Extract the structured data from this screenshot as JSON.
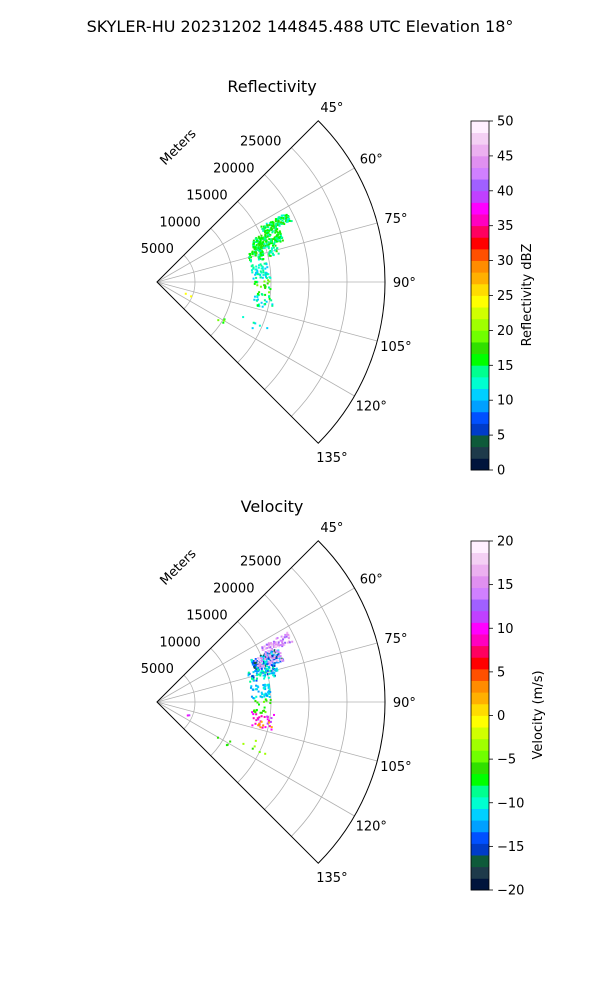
{
  "suptitle": "SKYLER-HU  20231202  144845.488 UTC Elevation 18°",
  "chart_data": [
    {
      "type": "scatter",
      "title": "Reflectivity",
      "radial_label": "Meters",
      "theta_range_deg": [
        45,
        135
      ],
      "r_max": 30000,
      "r_ticks": [
        5000,
        10000,
        15000,
        20000,
        25000
      ],
      "r_tick_labels": [
        "5000",
        "10000",
        "15000",
        "20000",
        "25000"
      ],
      "theta_ticks": [
        45,
        60,
        75,
        90,
        105,
        120,
        135
      ],
      "theta_tick_labels": [
        "45°",
        "60°",
        "75°",
        "90°",
        "105°",
        "120°",
        "135°"
      ],
      "grid": true,
      "colorbar": {
        "label": "Reflectivity dBZ",
        "range": [
          0,
          50
        ],
        "ticks": [
          0,
          5,
          10,
          15,
          20,
          25,
          30,
          35,
          40,
          45,
          50
        ],
        "tick_labels": [
          "0",
          "5",
          "10",
          "15",
          "20",
          "25",
          "30",
          "35",
          "40",
          "45",
          "50"
        ],
        "colors": [
          "#00143c",
          "#1e3a4a",
          "#0e5a3a",
          "#003cc8",
          "#0050ff",
          "#00a0ff",
          "#00d0ff",
          "#00ffd0",
          "#00ff90",
          "#00ff00",
          "#30e000",
          "#70ff00",
          "#a0ff00",
          "#d0ff00",
          "#ffff00",
          "#ffdc00",
          "#ffb000",
          "#ff8c00",
          "#ff5000",
          "#ff0000",
          "#ff0060",
          "#ff00c0",
          "#ff00ff",
          "#c040ff",
          "#a060ff",
          "#d080ff",
          "#e090f0",
          "#ecb0f0",
          "#f4d0f4",
          "#fff0ff"
        ]
      },
      "clusters": [
        {
          "theta": [
            62,
            66
          ],
          "r": [
            15500,
            19500
          ],
          "values": [
            12,
            18
          ],
          "count": 120
        },
        {
          "theta": [
            66,
            72
          ],
          "r": [
            13500,
            17500
          ],
          "values": [
            13,
            18
          ],
          "count": 170
        },
        {
          "theta": [
            72,
            78
          ],
          "r": [
            12500,
            16500
          ],
          "values": [
            12,
            18
          ],
          "count": 80
        },
        {
          "theta": [
            80,
            88
          ],
          "r": [
            12500,
            15000
          ],
          "values": [
            10,
            15
          ],
          "count": 50
        },
        {
          "theta": [
            88,
            96
          ],
          "r": [
            12800,
            15000
          ],
          "values": [
            14,
            20
          ],
          "count": 20
        },
        {
          "theta": [
            96,
            104
          ],
          "r": [
            13000,
            15500
          ],
          "values": [
            10,
            16
          ],
          "count": 30
        },
        {
          "theta": [
            110,
            116
          ],
          "r": [
            12000,
            16000
          ],
          "values": [
            10,
            14
          ],
          "count": 6
        },
        {
          "theta": [
            118,
            122
          ],
          "r": [
            9000,
            11000
          ],
          "values": [
            16,
            20
          ],
          "count": 4
        },
        {
          "theta": [
            112,
            114
          ],
          "r": [
            4000,
            5000
          ],
          "values": [
            23,
            25
          ],
          "count": 2
        }
      ]
    },
    {
      "type": "scatter",
      "title": "Velocity",
      "radial_label": "Meters",
      "theta_range_deg": [
        45,
        135
      ],
      "r_max": 30000,
      "r_ticks": [
        5000,
        10000,
        15000,
        20000,
        25000
      ],
      "r_tick_labels": [
        "5000",
        "10000",
        "15000",
        "20000",
        "25000"
      ],
      "theta_ticks": [
        45,
        60,
        75,
        90,
        105,
        120,
        135
      ],
      "theta_tick_labels": [
        "45°",
        "60°",
        "75°",
        "90°",
        "105°",
        "120°",
        "135°"
      ],
      "grid": true,
      "colorbar": {
        "label": "Velocity (m/s)",
        "range": [
          -20,
          20
        ],
        "ticks": [
          -20,
          -15,
          -10,
          -5,
          0,
          5,
          10,
          15,
          20
        ],
        "tick_labels": [
          "−20",
          "−15",
          "−10",
          "−5",
          "0",
          "5",
          "10",
          "15",
          "20"
        ],
        "colors": [
          "#00143c",
          "#1e3a4a",
          "#0e5a3a",
          "#003cc8",
          "#0050ff",
          "#00a0ff",
          "#00d0ff",
          "#00ffd0",
          "#00ff90",
          "#00ff00",
          "#30e000",
          "#70ff00",
          "#a0ff00",
          "#d0ff00",
          "#ffff00",
          "#ffdc00",
          "#ffb000",
          "#ff8c00",
          "#ff5000",
          "#ff0000",
          "#ff0060",
          "#ff00c0",
          "#ff00ff",
          "#c040ff",
          "#a060ff",
          "#d080ff",
          "#e090f0",
          "#ecb0f0",
          "#f4d0f4",
          "#fff0ff"
        ]
      },
      "clusters": [
        {
          "theta": [
            62,
            66
          ],
          "r": [
            15500,
            19500
          ],
          "values": [
            12,
            18
          ],
          "count": 80
        },
        {
          "theta": [
            66,
            72
          ],
          "r": [
            13500,
            17500
          ],
          "values": [
            -17,
            -10
          ],
          "count": 150
        },
        {
          "theta": [
            66,
            72
          ],
          "r": [
            14000,
            17500
          ],
          "values": [
            14,
            18
          ],
          "count": 60
        },
        {
          "theta": [
            72,
            78
          ],
          "r": [
            12500,
            16500
          ],
          "values": [
            -16,
            -8
          ],
          "count": 80
        },
        {
          "theta": [
            80,
            88
          ],
          "r": [
            12500,
            15000
          ],
          "values": [
            -13,
            -10
          ],
          "count": 50
        },
        {
          "theta": [
            88,
            96
          ],
          "r": [
            12800,
            15000
          ],
          "values": [
            -8,
            -5
          ],
          "count": 20
        },
        {
          "theta": [
            96,
            104
          ],
          "r": [
            12500,
            15500
          ],
          "values": [
            8,
            12
          ],
          "count": 30
        },
        {
          "theta": [
            100,
            104
          ],
          "r": [
            13500,
            15500
          ],
          "values": [
            1,
            4
          ],
          "count": 8
        },
        {
          "theta": [
            110,
            116
          ],
          "r": [
            12000,
            16000
          ],
          "values": [
            -6,
            -3
          ],
          "count": 6
        },
        {
          "theta": [
            118,
            122
          ],
          "r": [
            9000,
            11000
          ],
          "values": [
            -7,
            -5
          ],
          "count": 4
        },
        {
          "theta": [
            112,
            114
          ],
          "r": [
            4000,
            5000
          ],
          "values": [
            10,
            12
          ],
          "count": 2
        }
      ]
    }
  ]
}
